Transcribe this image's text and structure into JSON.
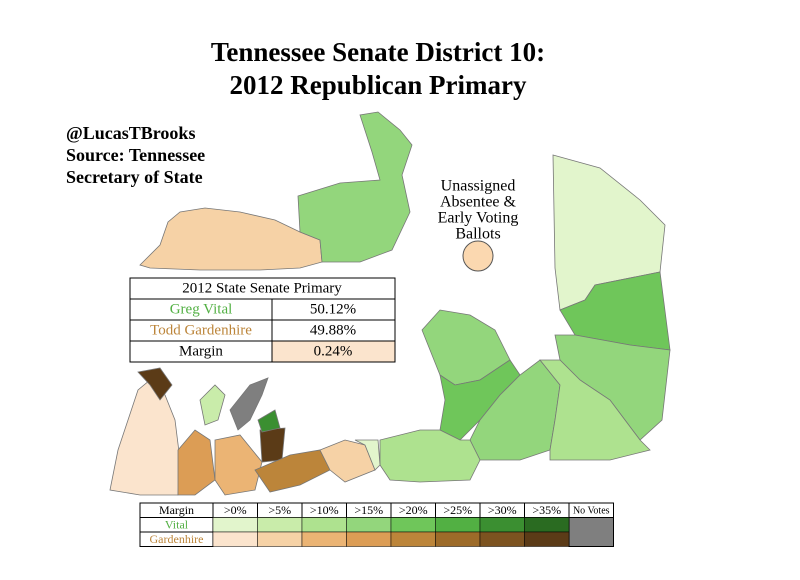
{
  "title": [
    "Tennessee Senate District 10:",
    "2012 Republican Primary"
  ],
  "credit": [
    "@LucasTBrooks",
    "Source: Tennessee",
    "Secretary of State"
  ],
  "unassigned_label": [
    "Unassigned",
    "Absentee &",
    "Early Voting",
    "Ballots"
  ],
  "results_table": {
    "title": "2012 State Senate Primary",
    "rows": [
      [
        "Greg Vital",
        "50.12%"
      ],
      [
        "Todd Gardenhire",
        "49.88%"
      ],
      [
        "Margin",
        "0.24%"
      ]
    ]
  },
  "legend": {
    "header": "Margin",
    "bins": [
      ">0%",
      ">5%",
      ">10%",
      ">15%",
      ">20%",
      ">25%",
      ">30%",
      ">35%"
    ],
    "no_votes": "No Votes",
    "no_votes_color": "#7f7f7f",
    "rows": [
      {
        "name": "Vital",
        "colors": [
          "#e2f5cc",
          "#c9ecaa",
          "#aee28f",
          "#93d67c",
          "#6fc65a",
          "#52b043",
          "#3b8f31",
          "#2a6b21"
        ]
      },
      {
        "name": "Gardenhire",
        "colors": [
          "#fbe4cd",
          "#f6d2a6",
          "#ebb474",
          "#dc9d55",
          "#bc853a",
          "#9d6b29",
          "#7c5320",
          "#5b3b17"
        ]
      }
    ]
  }
}
